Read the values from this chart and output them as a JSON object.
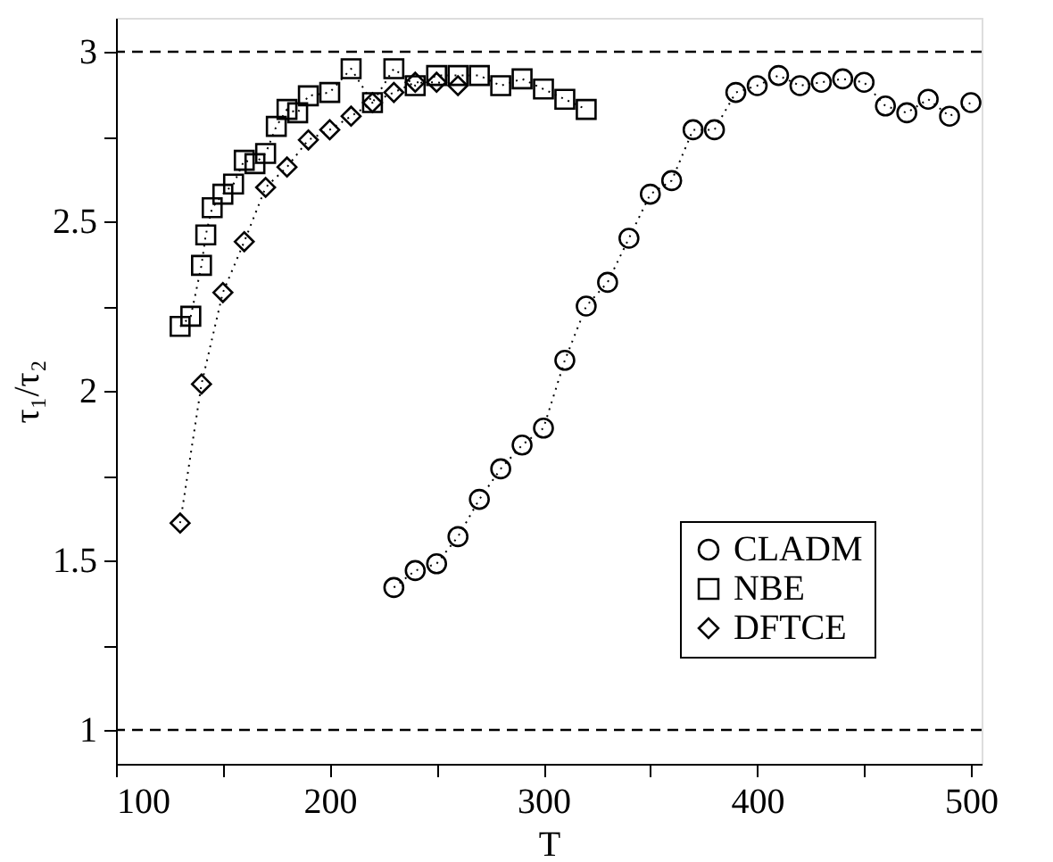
{
  "chart_data": {
    "type": "line",
    "xlabel": "T",
    "ylabel": "τ₁/τ₂",
    "xlim": [
      100,
      505
    ],
    "ylim": [
      0.9,
      3.1
    ],
    "xticks": [
      100,
      {
        "value": 150,
        "label": null
      },
      200,
      {
        "value": 250,
        "label": null
      },
      300,
      {
        "value": 350,
        "label": null
      },
      400,
      {
        "value": 450,
        "label": null
      },
      500
    ],
    "yticks": [
      1,
      {
        "value": 1.25,
        "label": null
      },
      1.5,
      {
        "value": 1.75,
        "label": null
      },
      2,
      {
        "value": 2.25,
        "label": null
      },
      2.5,
      {
        "value": 2.75,
        "label": null
      },
      3
    ],
    "grid": false,
    "legend": "bottom right",
    "line_style": "dotted",
    "ref_lines": [
      {
        "axis": "y",
        "value": 1,
        "color": "#000000",
        "line_style": "dashed"
      },
      {
        "axis": "y",
        "value": 3,
        "color": "#000000",
        "line_style": "dashed"
      }
    ],
    "series": [
      {
        "name": "CLADM",
        "color": "#000000",
        "marker": "circle",
        "x": [
          230,
          240,
          250,
          260,
          270,
          280,
          290,
          300,
          310,
          320,
          330,
          340,
          350,
          360,
          370,
          380,
          390,
          400,
          410,
          420,
          430,
          440,
          450,
          460,
          470,
          480,
          490,
          500
        ],
        "values": [
          1.42,
          1.47,
          1.49,
          1.57,
          1.68,
          1.77,
          1.84,
          1.89,
          2.09,
          2.25,
          2.32,
          2.45,
          2.58,
          2.62,
          2.77,
          2.77,
          2.88,
          2.9,
          2.93,
          2.9,
          2.91,
          2.92,
          2.91,
          2.84,
          2.82,
          2.86,
          2.81,
          2.85
        ]
      },
      {
        "name": "NBE",
        "color": "#000000",
        "marker": "square",
        "x": [
          130,
          135,
          140,
          142,
          145,
          150,
          155,
          160,
          165,
          170,
          175,
          180,
          185,
          190,
          200,
          210,
          220,
          230,
          240,
          250,
          260,
          270,
          280,
          290,
          300,
          310,
          320
        ],
        "values": [
          2.19,
          2.22,
          2.37,
          2.46,
          2.54,
          2.58,
          2.61,
          2.68,
          2.67,
          2.7,
          2.78,
          2.83,
          2.82,
          2.87,
          2.88,
          2.95,
          2.85,
          2.95,
          2.9,
          2.93,
          2.93,
          2.93,
          2.9,
          2.92,
          2.89,
          2.86,
          2.83
        ]
      },
      {
        "name": "DFTCE",
        "color": "#000000",
        "marker": "diamond",
        "x": [
          130,
          140,
          150,
          160,
          170,
          180,
          190,
          200,
          210,
          220,
          230,
          240,
          250,
          260
        ],
        "values": [
          1.61,
          2.02,
          2.29,
          2.44,
          2.6,
          2.66,
          2.74,
          2.77,
          2.81,
          2.85,
          2.88,
          2.91,
          2.91,
          2.9
        ]
      }
    ]
  }
}
